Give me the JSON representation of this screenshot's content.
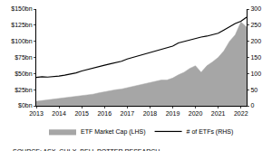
{
  "chart_data": {
    "type": "line",
    "categories": [
      "2013",
      null,
      null,
      null,
      "2014",
      null,
      null,
      null,
      "2015",
      null,
      null,
      null,
      "2016",
      null,
      null,
      null,
      "2017",
      null,
      null,
      null,
      "2018",
      null,
      null,
      null,
      "2019",
      null,
      null,
      null,
      "2020",
      null,
      null,
      null,
      "2021",
      null,
      null,
      null,
      "2022",
      null
    ],
    "series": [
      {
        "name": "ETF Market Cap (LHS)",
        "type": "area",
        "color": "#a6a6a6",
        "values": [
          7,
          8,
          9,
          10,
          11,
          12,
          13,
          14,
          16,
          17,
          18,
          20,
          22,
          24,
          25,
          26,
          28,
          30,
          32,
          34,
          36,
          38,
          40,
          40,
          43,
          48,
          52,
          58,
          62,
          52,
          62,
          68,
          75,
          85,
          100,
          110,
          130,
          122
        ]
      },
      {
        "name": "# of ETFs (RHS)",
        "type": "line",
        "color": "#000000",
        "axis": "y2",
        "values": [
          88,
          90,
          89,
          90,
          92,
          95,
          98,
          102,
          108,
          113,
          118,
          122,
          126,
          130,
          133,
          138,
          145,
          150,
          155,
          160,
          165,
          170,
          175,
          178,
          185,
          195,
          200,
          205,
          210,
          213,
          216,
          220,
          225,
          235,
          245,
          255,
          262,
          275
        ]
      }
    ],
    "ylim": [
      0,
      150
    ],
    "yticks": [
      {
        "value": 0,
        "label": "$0bn"
      },
      {
        "value": 25,
        "label": "$25bn"
      },
      {
        "value": 50,
        "label": "$50bn"
      },
      {
        "value": 75,
        "label": "$75bn"
      },
      {
        "value": 100,
        "label": "$100bn"
      },
      {
        "value": 125,
        "label": "$125bn"
      },
      {
        "value": 150,
        "label": "$150bn"
      }
    ],
    "y2lim": [
      0,
      300
    ],
    "y2ticks": [
      0,
      50,
      100,
      150,
      200,
      250,
      300
    ],
    "grid": false,
    "legend": "bottom",
    "annotations": [
      "SOURCE: ASX, CHI-X, BELL POTTER RESEARCH."
    ]
  }
}
